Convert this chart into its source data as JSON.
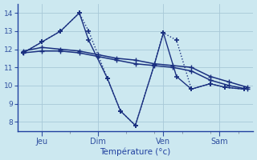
{
  "background_color": "#cce8f0",
  "grid_color": "#a8c8d8",
  "line_color": "#1a3080",
  "xlabel": "Température (°c)",
  "xtick_labels": [
    "Jeu",
    "Dim",
    "Ven",
    "Sam"
  ],
  "ylim": [
    7.5,
    14.5
  ],
  "yticks": [
    8,
    9,
    10,
    11,
    12,
    13,
    14
  ],
  "xlim": [
    -0.3,
    12.3
  ],
  "xtick_positions": [
    1.0,
    4.0,
    7.5,
    10.5
  ],
  "series": [
    {
      "x": [
        0,
        1,
        2,
        3,
        3.5,
        4.5,
        5.2,
        6.0,
        7.0,
        7.5,
        8.2,
        9.0,
        10.0,
        10.8,
        11.8
      ],
      "y": [
        11.8,
        12.4,
        13.0,
        14.0,
        13.0,
        10.4,
        8.6,
        7.8,
        11.1,
        12.9,
        12.5,
        9.8,
        10.1,
        9.9,
        9.8
      ],
      "style": ":",
      "marker": "+",
      "markersize": 5,
      "linewidth": 1.0,
      "markeredgewidth": 1.2
    },
    {
      "x": [
        0,
        1,
        2,
        3,
        3.5,
        4.5,
        5.2,
        6.0,
        7.0,
        7.5,
        8.2,
        9.0,
        10.0,
        10.8,
        11.8
      ],
      "y": [
        11.8,
        12.4,
        13.0,
        14.0,
        12.5,
        10.4,
        8.6,
        7.8,
        11.1,
        12.9,
        10.5,
        9.8,
        10.1,
        9.9,
        9.8
      ],
      "style": "-",
      "marker": "+",
      "markersize": 5,
      "linewidth": 1.0,
      "markeredgewidth": 1.2
    },
    {
      "x": [
        0,
        1,
        2,
        3,
        4,
        5,
        6,
        7,
        8,
        9,
        10,
        11,
        12
      ],
      "y": [
        11.9,
        12.1,
        12.0,
        11.9,
        11.7,
        11.5,
        11.4,
        11.2,
        11.1,
        11.0,
        10.5,
        10.2,
        9.9
      ],
      "style": "-",
      "marker": "+",
      "markersize": 4,
      "linewidth": 1.1,
      "markeredgewidth": 1.0
    },
    {
      "x": [
        0,
        1,
        2,
        3,
        4,
        5,
        6,
        7,
        8,
        9,
        10,
        11,
        12
      ],
      "y": [
        11.8,
        11.9,
        11.9,
        11.8,
        11.6,
        11.4,
        11.2,
        11.1,
        11.0,
        10.8,
        10.3,
        10.0,
        9.8
      ],
      "style": "-",
      "marker": "+",
      "markersize": 4,
      "linewidth": 1.1,
      "markeredgewidth": 1.0
    }
  ]
}
